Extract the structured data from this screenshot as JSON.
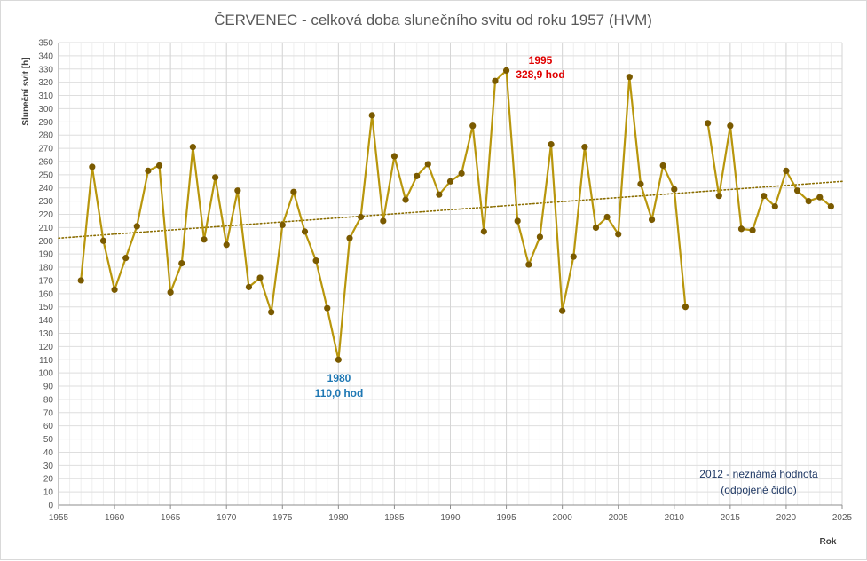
{
  "chart_data": {
    "type": "line",
    "title": "ČERVENEC - celková doba slunečního svitu od roku 1957 (HVM)",
    "xlabel": "Rok",
    "ylabel": "Sluneční svit [h]",
    "xlim": [
      1955,
      2025
    ],
    "ylim": [
      0,
      350
    ],
    "x_ticks": [
      1955,
      1960,
      1965,
      1970,
      1975,
      1980,
      1985,
      1990,
      1995,
      2000,
      2005,
      2010,
      2015,
      2020,
      2025
    ],
    "y_ticks": [
      0,
      10,
      20,
      30,
      40,
      50,
      60,
      70,
      80,
      90,
      100,
      110,
      120,
      130,
      140,
      150,
      160,
      170,
      180,
      190,
      200,
      210,
      220,
      230,
      240,
      250,
      260,
      270,
      280,
      290,
      300,
      310,
      320,
      330,
      340,
      350
    ],
    "grid": true,
    "series": [
      {
        "color": "#b8960c",
        "marker_color": "#7a5a00",
        "x": [
          1957,
          1958,
          1959,
          1960,
          1961,
          1962,
          1963,
          1964,
          1965,
          1966,
          1967,
          1968,
          1969,
          1970,
          1971,
          1972,
          1973,
          1974,
          1975,
          1976,
          1977,
          1978,
          1979,
          1980,
          1981,
          1982,
          1983,
          1984,
          1985,
          1986,
          1987,
          1988,
          1989,
          1990,
          1991,
          1992,
          1993,
          1994,
          1995,
          1996,
          1997,
          1998,
          1999,
          2000,
          2001,
          2002,
          2003,
          2004,
          2005,
          2006,
          2007,
          2008,
          2009,
          2010,
          2011,
          2012,
          2013,
          2014,
          2015,
          2016,
          2017,
          2018,
          2019,
          2020,
          2021,
          2022,
          2023,
          2024
        ],
        "values": [
          170,
          256,
          200,
          163,
          187,
          211,
          253,
          257,
          161,
          183,
          271,
          201,
          248,
          197,
          238,
          165,
          172,
          146,
          212,
          237,
          207,
          185,
          149,
          110.0,
          202,
          218,
          295,
          215,
          264,
          231,
          249,
          258,
          235,
          245,
          251,
          287,
          207,
          321,
          328.9,
          215,
          182,
          203,
          273,
          147,
          188,
          271,
          210,
          218,
          205,
          324,
          243,
          216,
          257,
          239,
          150,
          null,
          289,
          234,
          287,
          209,
          208,
          234,
          226,
          253,
          238,
          230,
          233,
          226
        ]
      }
    ],
    "trendline": {
      "type": "linear",
      "color": "#8a6d00",
      "style": "dotted",
      "x": [
        1955,
        2025
      ],
      "values": [
        202,
        245
      ]
    },
    "annotations": {
      "max": {
        "year": "1995",
        "value": "328,9 hod",
        "color": "#e00000"
      },
      "min": {
        "year": "1980",
        "value": "110,0 hod",
        "color": "#1f78b4"
      },
      "note": {
        "line1": "2012  - neznámá hodnota",
        "line2": "(odpojené čidlo)"
      }
    }
  }
}
